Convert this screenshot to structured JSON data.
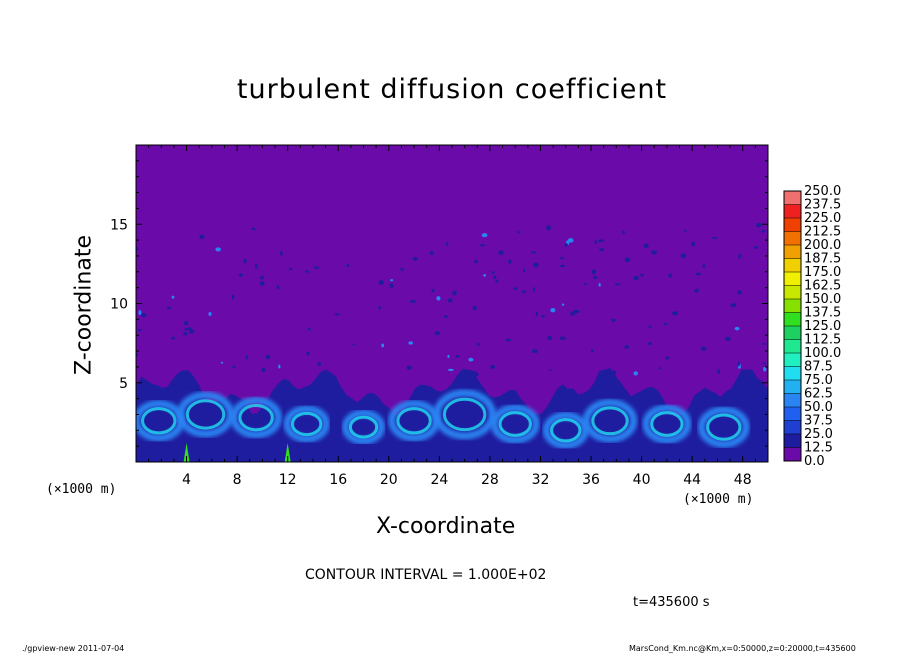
{
  "chart_data": {
    "type": "heatmap",
    "title": "turbulent diffusion coefficient",
    "xlabel": "X-coordinate",
    "ylabel": "Z-coordinate",
    "x_unit": "(×1000 m)",
    "y_unit": "(×1000 m)",
    "xlim": [
      0,
      50
    ],
    "ylim": [
      0,
      20
    ],
    "x_ticks": [
      4,
      8,
      12,
      16,
      20,
      24,
      28,
      32,
      36,
      40,
      44,
      48
    ],
    "y_ticks": [
      5,
      10,
      15
    ],
    "colorbar": {
      "levels": [
        "0.0",
        "12.5",
        "25.0",
        "37.5",
        "50.0",
        "62.5",
        "75.0",
        "87.5",
        "100.0",
        "112.5",
        "125.0",
        "137.5",
        "150.0",
        "162.5",
        "175.0",
        "187.5",
        "200.0",
        "212.5",
        "225.0",
        "237.5",
        "250.0"
      ],
      "colors": [
        "#6a0aa8",
        "#1f1d9f",
        "#1f3fd0",
        "#2060f0",
        "#2a84f2",
        "#22b0f0",
        "#20ddf0",
        "#20f0c0",
        "#20e890",
        "#1ed060",
        "#30e020",
        "#86e000",
        "#c8e800",
        "#f0f000",
        "#f0d000",
        "#f0a000",
        "#f07000",
        "#f04000",
        "#ee2020",
        "#f07070"
      ]
    },
    "contour_interval": "CONTOUR INTERVAL = 1.000E+02",
    "time_label": "t=435600 s",
    "colors": {
      "background_field": "#6a0aa8",
      "low": "#1f1d9f",
      "mid": "#2a84f2",
      "high": "#20ddf0"
    }
  },
  "footer": {
    "left": "./gpview-new  2011-07-04",
    "right": "MarsCond_Km.nc@Km,x=0:50000,z=0:20000,t=435600"
  }
}
